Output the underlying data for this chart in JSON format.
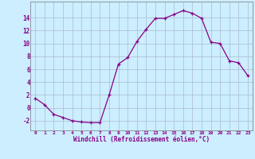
{
  "x": [
    0,
    1,
    2,
    3,
    4,
    5,
    6,
    7,
    8,
    9,
    10,
    11,
    12,
    13,
    14,
    15,
    16,
    17,
    18,
    19,
    20,
    21,
    22,
    23
  ],
  "y": [
    1.5,
    0.5,
    -1.0,
    -1.5,
    -2.0,
    -2.2,
    -2.3,
    -2.3,
    2.0,
    6.8,
    7.8,
    10.3,
    12.2,
    13.9,
    13.9,
    14.5,
    15.1,
    14.7,
    13.9,
    10.2,
    10.0,
    7.3,
    7.0,
    5.0
  ],
  "line_color": "#880088",
  "marker": "+",
  "bg_color": "#cceeff",
  "grid_color": "#aabbcc",
  "xlabel": "Windchill (Refroidissement éolien,°C)",
  "xlabel_color": "#880088",
  "tick_color": "#880088",
  "ylim": [
    -3.5,
    16.5
  ],
  "yticks": [
    -2,
    0,
    2,
    4,
    6,
    8,
    10,
    12,
    14
  ],
  "xlim": [
    -0.5,
    23.5
  ],
  "spine_color": "#888899"
}
